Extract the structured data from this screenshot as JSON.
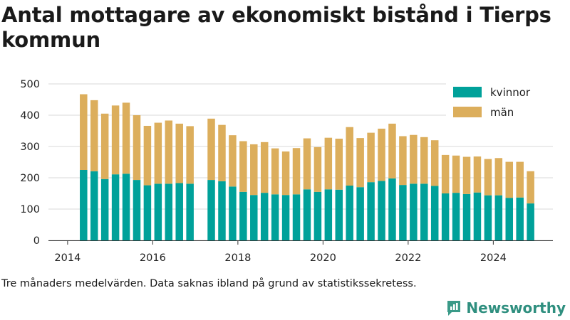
{
  "title": "Antal mottagare av ekonomiskt bistånd i Tierps kommun",
  "caption": "Tre månaders medelvärden. Data saknas ibland på grund av statistikssekretess.",
  "brand": "Newsworthy",
  "colors": {
    "kvinnor": "#00a19a",
    "man": "#dcae5c",
    "grid": "#d9d9d9",
    "axis": "#333333"
  },
  "chart_data": {
    "type": "bar",
    "stacked": true,
    "title": "Antal mottagare av ekonomiskt bistånd i Tierps kommun",
    "xlabel": "",
    "ylabel": "",
    "ylim": [
      0,
      500
    ],
    "xlim": [
      2013.55,
      2025.4
    ],
    "yticks": [
      0,
      100,
      200,
      300,
      400,
      500
    ],
    "xticks": [
      2014,
      2016,
      2018,
      2020,
      2022,
      2024
    ],
    "grid": true,
    "legend_position": "top-right",
    "x": [
      2014.375,
      2014.625,
      2014.875,
      2015.125,
      2015.375,
      2015.625,
      2015.875,
      2016.125,
      2016.375,
      2016.625,
      2016.875,
      2017.375,
      2017.625,
      2017.875,
      2018.125,
      2018.375,
      2018.625,
      2018.875,
      2019.125,
      2019.375,
      2019.625,
      2019.875,
      2020.125,
      2020.375,
      2020.625,
      2020.875,
      2021.125,
      2021.375,
      2021.625,
      2021.875,
      2022.125,
      2022.375,
      2022.625,
      2022.875,
      2023.125,
      2023.375,
      2023.625,
      2023.875,
      2024.125,
      2024.375,
      2024.625,
      2024.875
    ],
    "series": [
      {
        "name": "kvinnor",
        "values": [
          225,
          221,
          196,
          211,
          213,
          193,
          176,
          181,
          181,
          183,
          181,
          193,
          189,
          172,
          155,
          145,
          152,
          147,
          145,
          147,
          163,
          155,
          163,
          162,
          175,
          170,
          186,
          190,
          198,
          177,
          181,
          181,
          174,
          150,
          152,
          148,
          153,
          144,
          144,
          136,
          137,
          118
        ]
      },
      {
        "name": "män",
        "values": [
          242,
          227,
          209,
          220,
          227,
          207,
          190,
          195,
          202,
          190,
          184,
          196,
          180,
          164,
          162,
          162,
          162,
          147,
          139,
          148,
          163,
          143,
          165,
          163,
          187,
          157,
          158,
          167,
          175,
          156,
          156,
          149,
          146,
          123,
          119,
          119,
          115,
          116,
          119,
          115,
          114,
          103
        ]
      }
    ]
  }
}
